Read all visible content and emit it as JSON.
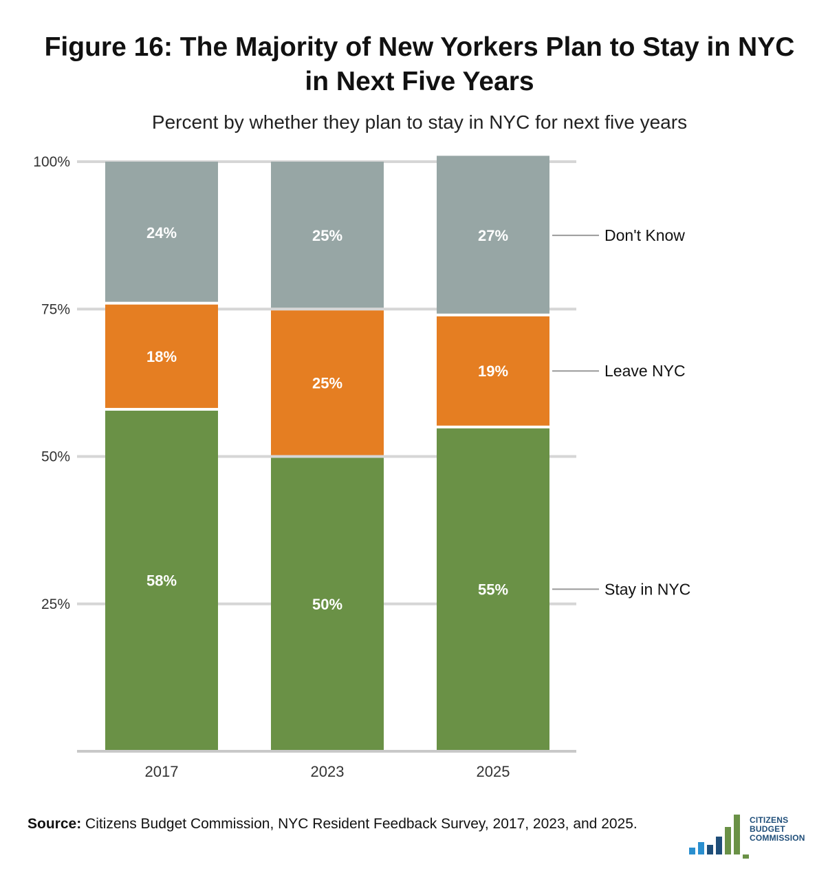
{
  "title_line1": "Figure 16: The Majority of New Yorkers Plan to Stay in NYC",
  "title_line2": "in Next Five Years",
  "subtitle": "Percent by whether they plan to stay in NYC for next five years",
  "chart_data": {
    "type": "bar",
    "stacked": true,
    "categories": [
      "2017",
      "2023",
      "2025"
    ],
    "series": [
      {
        "name": "Stay in NYC",
        "values": [
          58,
          50,
          55
        ],
        "labels": [
          "58%",
          "50%",
          "55%"
        ],
        "color": "#6a9146"
      },
      {
        "name": "Leave NYC",
        "values": [
          18,
          25,
          19
        ],
        "labels": [
          "18%",
          "25%",
          "19%"
        ],
        "color": "#e57e22"
      },
      {
        "name": "Don't Know",
        "values": [
          24,
          25,
          27
        ],
        "labels": [
          "24%",
          "25%",
          "27%"
        ],
        "color": "#97a6a5"
      }
    ],
    "ylim": [
      0,
      100
    ],
    "yticks": [
      {
        "value": 25,
        "label": "25%"
      },
      {
        "value": 50,
        "label": "50%"
      },
      {
        "value": 75,
        "label": "75%"
      },
      {
        "value": 100,
        "label": "100%"
      }
    ],
    "legend_position": "right"
  },
  "source": {
    "label": "Source:",
    "text": " Citizens Budget Commission, NYC Resident Feedback Survey, 2017, 2023, and 2025."
  },
  "logo": {
    "line1": "CITIZENS",
    "line2": "BUDGET",
    "line3": "COMMISSION"
  }
}
